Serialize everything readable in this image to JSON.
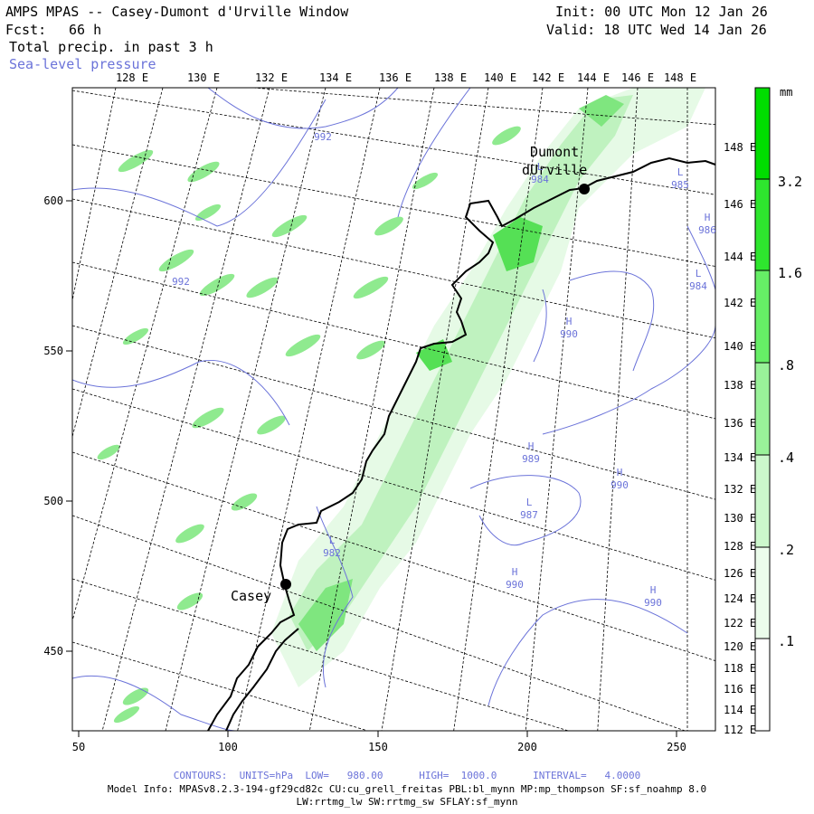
{
  "header": {
    "title": "AMPS MPAS -- Casey-Dumont d'Urville Window",
    "fcst_label": "Fcst:",
    "fcst_value": "66 h",
    "field": "Total precip. in past 3 h",
    "overlay": "Sea-level pressure",
    "init": "Init: 00 UTC Mon 12 Jan 26",
    "valid": "Valid: 18 UTC Wed 14 Jan 26"
  },
  "axes": {
    "x_ticks": [
      "50",
      "100",
      "150",
      "200",
      "250"
    ],
    "y_ticks": [
      "600",
      "550",
      "500",
      "450"
    ],
    "top_lon_labels": [
      "128 E",
      "130 E",
      "132 E",
      "134 E",
      "136 E",
      "138 E",
      "140 E",
      "142 E",
      "144 E",
      "146 E",
      "148 E"
    ],
    "right_lon_labels": [
      "148 E",
      "146 E",
      "144 E",
      "142 E",
      "140 E",
      "138 E",
      "136 E",
      "134 E",
      "132 E",
      "130 E",
      "128 E",
      "126 E",
      "124 E",
      "122 E",
      "120 E",
      "118 E",
      "116 E",
      "114 E",
      "112 E"
    ]
  },
  "stations": [
    {
      "name": "Casey"
    },
    {
      "name1": "Dumont",
      "name2": "dUrville"
    }
  ],
  "pressure_labels": [
    {
      "type": "",
      "value": "992"
    },
    {
      "type": "",
      "value": "992"
    },
    {
      "type": "L",
      "value": "982"
    },
    {
      "type": "L",
      "value": "984"
    },
    {
      "type": "L",
      "value": "985"
    },
    {
      "type": "L",
      "value": "984"
    },
    {
      "type": "H",
      "value": "986"
    },
    {
      "type": "H",
      "value": "990"
    },
    {
      "type": "H",
      "value": "989"
    },
    {
      "type": "L",
      "value": "987"
    },
    {
      "type": "H",
      "value": "990"
    },
    {
      "type": "H",
      "value": "990"
    },
    {
      "type": "H",
      "value": "990"
    }
  ],
  "colorbar": {
    "unit": "mm",
    "labels": [
      "3.2",
      "1.6",
      ".8",
      ".4",
      ".2",
      ".1"
    ],
    "colors": [
      "#00dd00",
      "#2ee62e",
      "#66ee66",
      "#99f299",
      "#ccf8cc",
      "#ebfceb"
    ]
  },
  "footer": {
    "contours": "CONTOURS:  UNITS=hPa  LOW=   980.00      HIGH=  1000.0      INTERVAL=   4.0000",
    "model_info": "Model Info: MPASv8.2.3-194-gf29cd82c CU:cu_grell_freitas PBL:bl_mynn MP:mp_thompson SF:sf_noahmp 8.0",
    "model_info2": "LW:rrtmg_lw SW:rrtmg_sw SFLAY:sf_mynn"
  }
}
